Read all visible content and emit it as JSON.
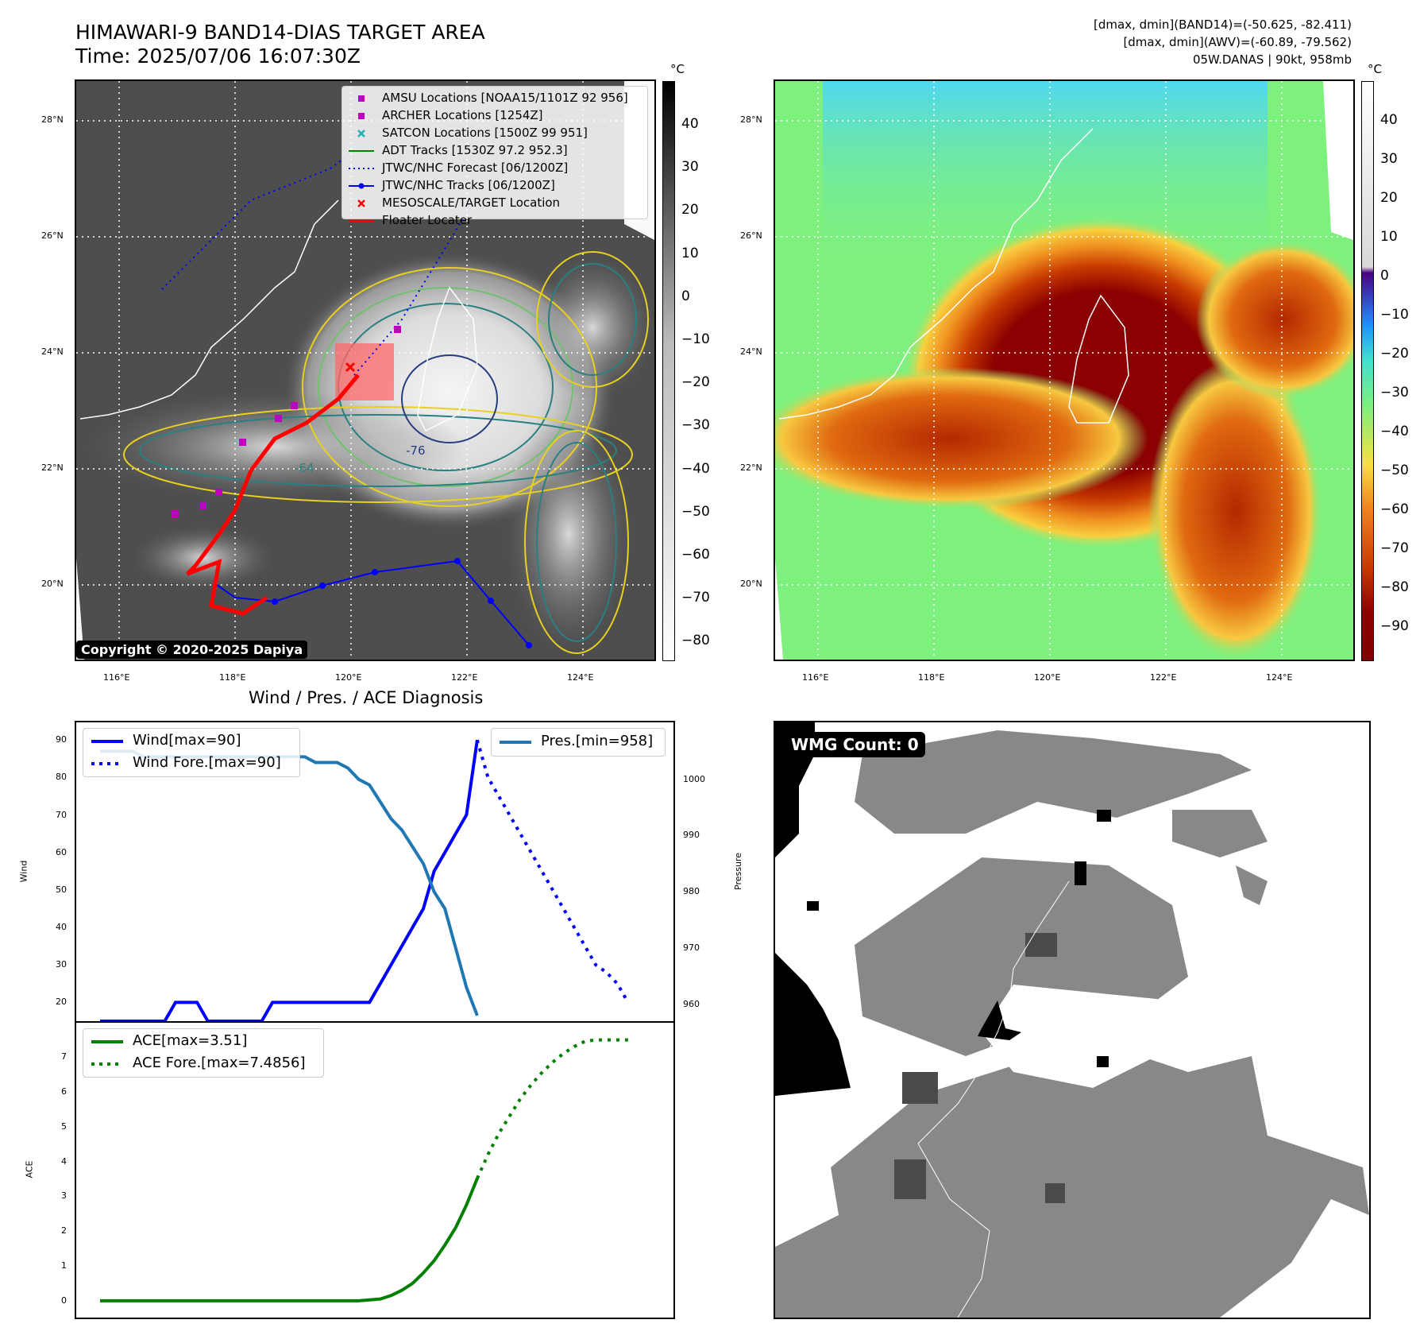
{
  "header": {
    "title_line1": "HIMAWARI-9 BAND14-DIAS TARGET AREA",
    "title_line2": "Time: 2025/07/06 16:07:30Z",
    "info_line1": "[dmax, dmin](BAND14)=(-50.625, -82.411)",
    "info_line2": "[dmax, dmin](AWV)=(-60.89, -79.562)",
    "info_line3": "05W.DANAS | 90kt, 958mb"
  },
  "map": {
    "lon_ticks": [
      "116°E",
      "118°E",
      "120°E",
      "122°E",
      "124°E"
    ],
    "lat_ticks": [
      "28°N",
      "26°N",
      "24°N",
      "22°N",
      "20°N"
    ],
    "copyright": "Copyright © 2020-2025 Dapiya",
    "contour_labels": [
      "-76",
      "-64"
    ],
    "legend": [
      {
        "label": "AMSU Locations [NOAA15/1101Z 92 956]",
        "color": "#c000c0",
        "marker": "square"
      },
      {
        "label": "ARCHER Locations [1254Z]",
        "color": "#c000c0",
        "marker": "square"
      },
      {
        "label": "SATCON Locations [1500Z 99 951]",
        "color": "#20b0b0",
        "marker": "x"
      },
      {
        "label": "ADT Tracks [1530Z 97.2 952.3]",
        "color": "#008000",
        "marker": "line"
      },
      {
        "label": "JTWC/NHC Forecast [06/1200Z]",
        "color": "#0000ff",
        "marker": "dotted"
      },
      {
        "label": "JTWC/NHC Tracks [06/1200Z]",
        "color": "#0000ff",
        "marker": "line-dot"
      },
      {
        "label": "MESOSCALE/TARGET Location",
        "color": "#ff0000",
        "marker": "x"
      },
      {
        "label": "Floater Locater",
        "color": "#ff0000",
        "marker": "line"
      }
    ]
  },
  "colorbar_left": {
    "unit": "°C",
    "ticks": [
      "40",
      "30",
      "20",
      "10",
      "0",
      "−10",
      "−20",
      "−30",
      "−40",
      "−50",
      "−60",
      "−70",
      "−80"
    ]
  },
  "colorbar_right": {
    "unit": "°C",
    "ticks": [
      "40",
      "30",
      "20",
      "10",
      "0",
      "−10",
      "−20",
      "−30",
      "−40",
      "−50",
      "−60",
      "−70",
      "−80",
      "−90"
    ]
  },
  "wmg": {
    "label": "WMG Count: 0"
  },
  "colors": {
    "wind": "#0000ff",
    "pressure": "#1f77b4",
    "ace": "#008000"
  },
  "chart_data": [
    {
      "type": "line",
      "title": "Wind / Pres. / ACE Diagnosis",
      "ylabel": "Wind",
      "ylabel_right": "Pressure",
      "ylim": [
        15,
        93
      ],
      "ylim_right": [
        957,
        1009
      ],
      "yticks": [
        "90",
        "80",
        "70",
        "60",
        "50",
        "40",
        "30",
        "20"
      ],
      "yticks_right": [
        "1000",
        "990",
        "980",
        "970",
        "960"
      ],
      "series": [
        {
          "name": "Wind[max=90]",
          "axis": "left",
          "style": "solid",
          "x": [
            0,
            1,
            2,
            3,
            4,
            5,
            6,
            7,
            8,
            9,
            10,
            11,
            12,
            13,
            14,
            15,
            16,
            17,
            18,
            19,
            20,
            21,
            22,
            23,
            24,
            25,
            26,
            27,
            28,
            29,
            30,
            31,
            32,
            33,
            34,
            35
          ],
          "values": [
            15,
            15,
            15,
            15,
            15,
            15,
            15,
            20,
            20,
            20,
            15,
            15,
            15,
            15,
            15,
            15,
            20,
            20,
            20,
            20,
            20,
            20,
            20,
            20,
            20,
            20,
            25,
            30,
            35,
            40,
            45,
            55,
            60,
            65,
            70,
            90
          ]
        },
        {
          "name": "Wind Fore.[max=90]",
          "axis": "left",
          "style": "dotted",
          "x": [
            35,
            36,
            37,
            38,
            39,
            40,
            41,
            42,
            43,
            44,
            45,
            46,
            47,
            48,
            49
          ],
          "values": [
            90,
            80,
            75,
            70,
            65,
            60,
            55,
            50,
            45,
            40,
            35,
            30,
            28,
            25,
            20
          ]
        },
        {
          "name": "Pres.[min=958]",
          "axis": "right",
          "style": "solid",
          "x": [
            0,
            1,
            2,
            3,
            4,
            5,
            6,
            7,
            8,
            9,
            10,
            11,
            12,
            13,
            14,
            15,
            16,
            17,
            18,
            19,
            20,
            21,
            22,
            23,
            24,
            25,
            26,
            27,
            28,
            29,
            30,
            31,
            32,
            33,
            34,
            35
          ],
          "values": [
            1005,
            1005,
            1005,
            1005,
            1004,
            1004,
            1004,
            1004,
            1004,
            1004,
            1004,
            1004,
            1004,
            1004,
            1004,
            1004,
            1004,
            1004,
            1004,
            1004,
            1003,
            1003,
            1003,
            1002,
            1000,
            999,
            996,
            993,
            991,
            988,
            985,
            980,
            977,
            970,
            963,
            958
          ]
        }
      ]
    },
    {
      "type": "line",
      "ylabel": "ACE",
      "ylim": [
        -0.3,
        7.8
      ],
      "yticks": [
        "7",
        "6",
        "5",
        "4",
        "3",
        "2",
        "1",
        "0"
      ],
      "series": [
        {
          "name": "ACE[max=3.51]",
          "style": "solid",
          "x": [
            0,
            5,
            10,
            15,
            20,
            24,
            26,
            27,
            28,
            29,
            30,
            31,
            32,
            33,
            34,
            35
          ],
          "values": [
            0,
            0,
            0,
            0,
            0,
            0,
            0.05,
            0.15,
            0.3,
            0.5,
            0.8,
            1.15,
            1.6,
            2.1,
            2.75,
            3.51
          ]
        },
        {
          "name": "ACE Fore.[max=7.4856]",
          "style": "dotted",
          "x": [
            35,
            36,
            37,
            38,
            39,
            40,
            41,
            42,
            43,
            44,
            45,
            46,
            47,
            48,
            49
          ],
          "values": [
            3.51,
            4.2,
            4.8,
            5.3,
            5.8,
            6.2,
            6.55,
            6.85,
            7.1,
            7.3,
            7.45,
            7.49,
            7.49,
            7.49,
            7.49
          ]
        }
      ]
    }
  ]
}
